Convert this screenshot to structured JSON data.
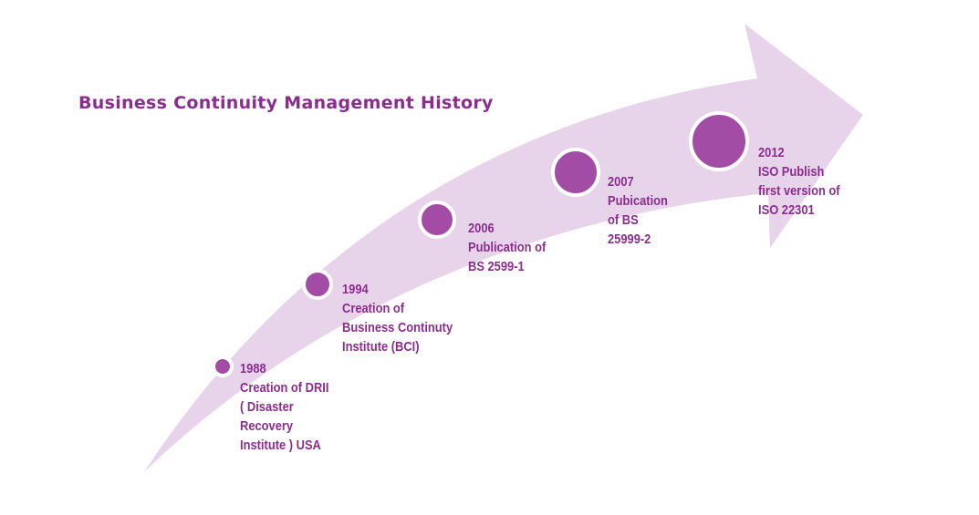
{
  "title": "Business Continuity Management History",
  "colors": {
    "arrow_fill": "#e8d4ea",
    "node_fill": "#a34ca6",
    "text": "#8b2d8f"
  },
  "milestones": [
    {
      "year": "1988",
      "lines": [
        "Creation of DRII",
        "( Disaster",
        "Recovery",
        "Institute ) USA"
      ]
    },
    {
      "year": "1994",
      "lines": [
        "Creation of",
        "Business Continuty",
        "Institute (BCI)"
      ]
    },
    {
      "year": "2006",
      "lines": [
        "Publication of",
        "BS 2599-1"
      ]
    },
    {
      "year": "2007",
      "lines": [
        "Pubication",
        "of BS",
        "25999-2"
      ]
    },
    {
      "year": "2012",
      "lines": [
        "ISO Publish",
        "first version of",
        "ISO 22301"
      ]
    }
  ]
}
